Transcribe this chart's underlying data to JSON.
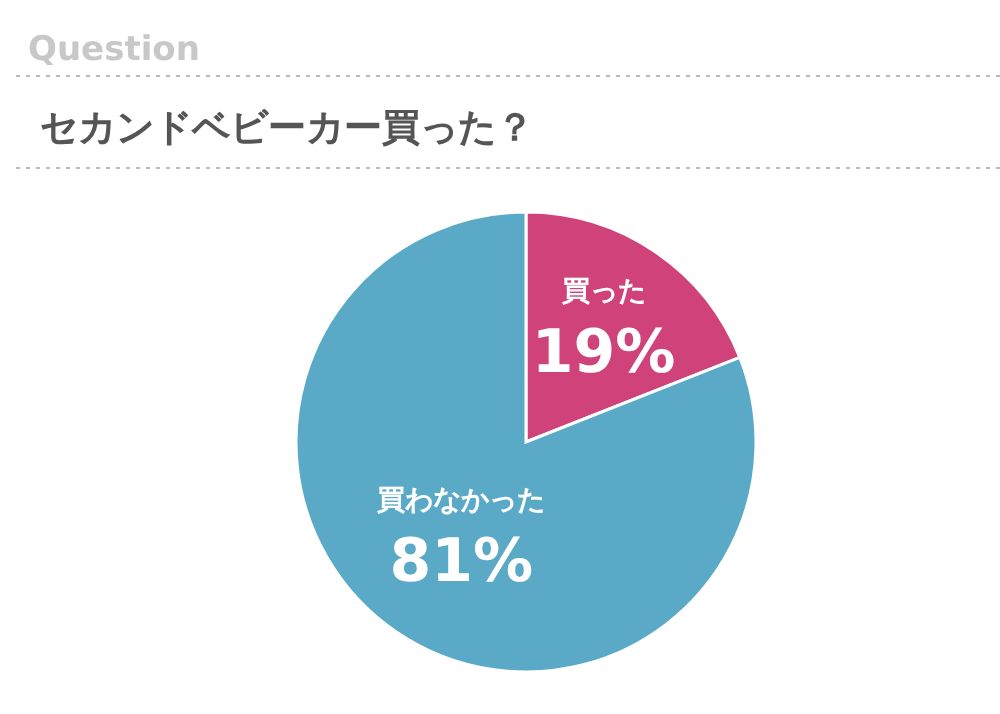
{
  "chart_data": {
    "type": "pie",
    "subtitle": "Question",
    "title": "セカンドベビーカー買った？",
    "categories": [
      "買った",
      "買わなかった"
    ],
    "values": [
      19,
      81
    ],
    "colors": [
      "#d0437a",
      "#59a9c7"
    ],
    "value_labels": [
      "19%",
      "81%"
    ]
  }
}
